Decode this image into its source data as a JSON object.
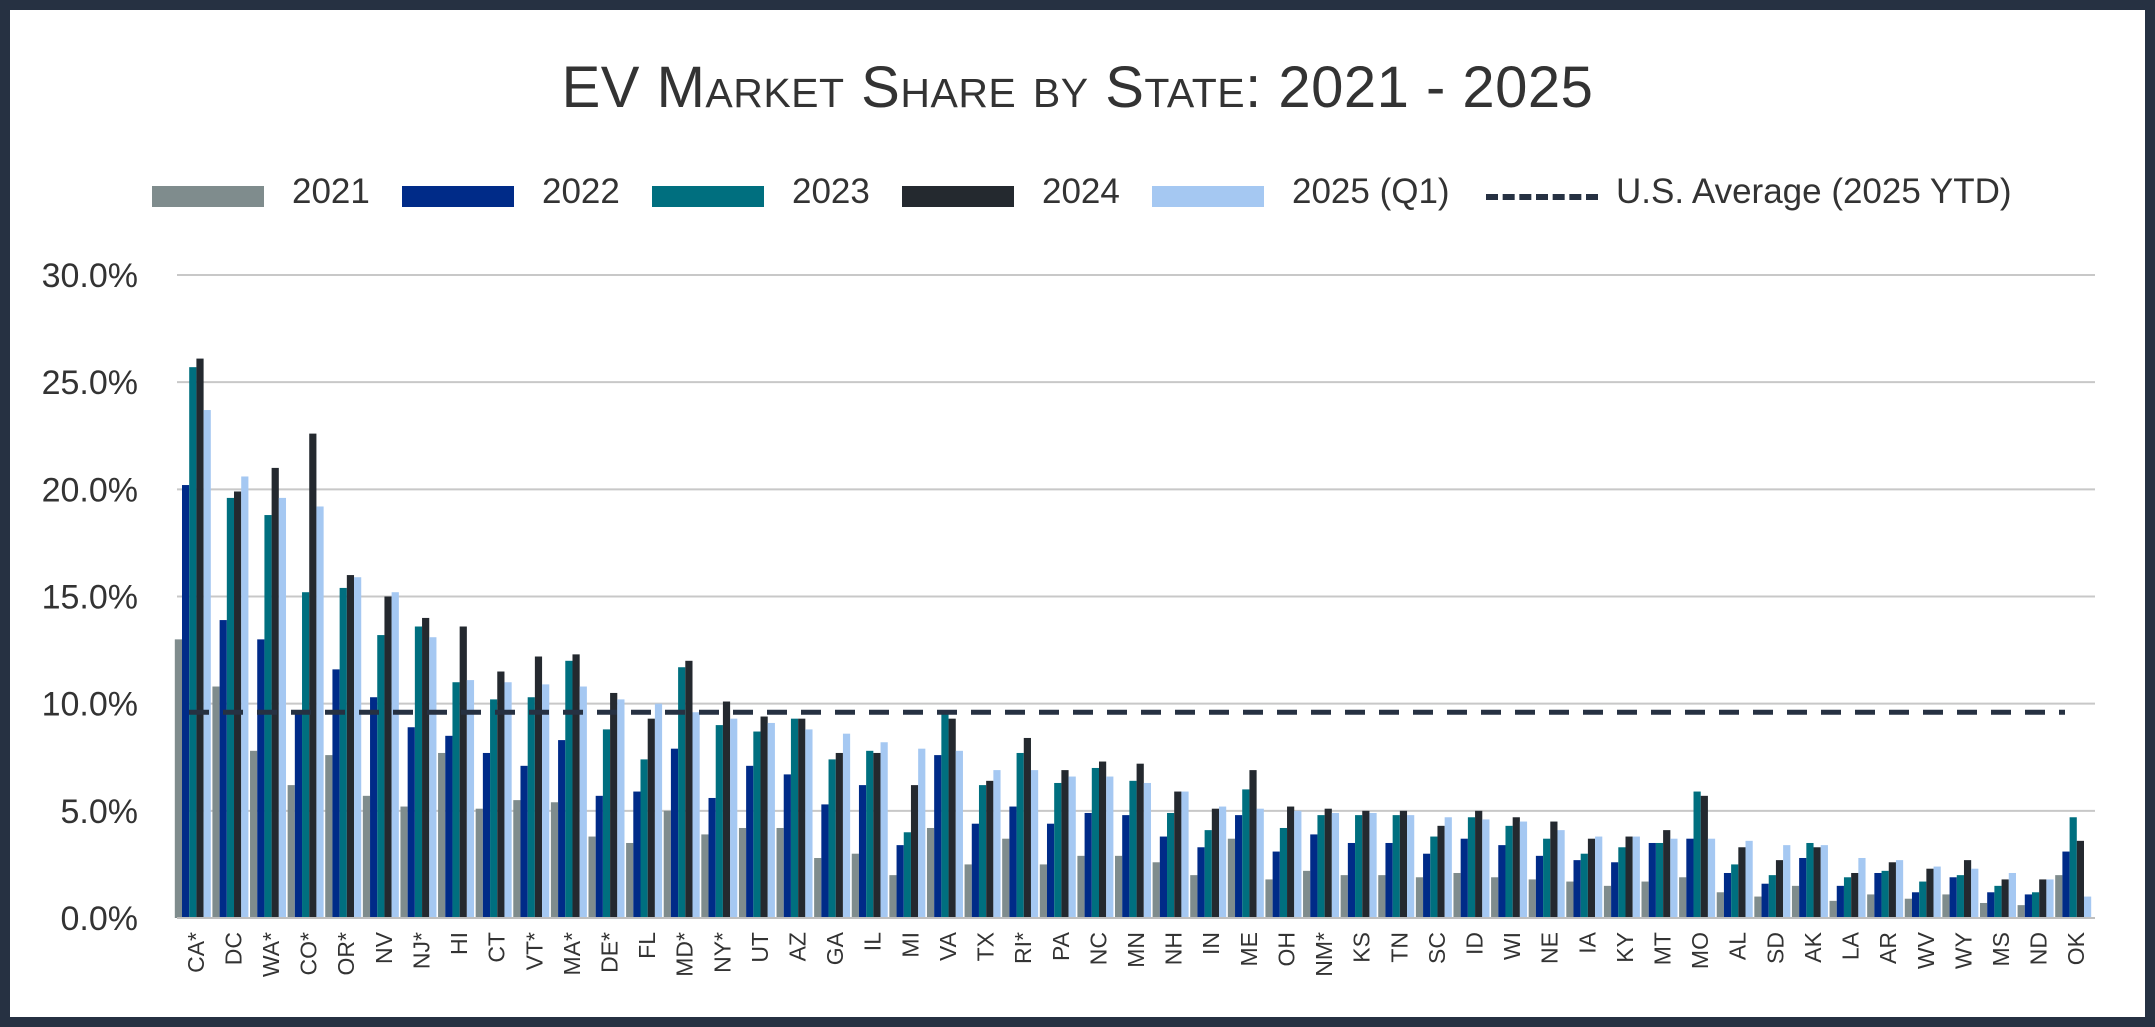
{
  "chart_data": {
    "type": "bar",
    "title": "EV Market Share by State: 2021 - 2025",
    "xlabel": "",
    "ylabel": "",
    "ylim": [
      0,
      30
    ],
    "yticks": [
      "0.0%",
      "5.0%",
      "10.0%",
      "15.0%",
      "20.0%",
      "25.0%",
      "30.0%"
    ],
    "ytick_values": [
      0,
      5,
      10,
      15,
      20,
      25,
      30
    ],
    "grid": true,
    "legend_position": "top",
    "categories": [
      "CA*",
      "DC",
      "WA*",
      "CO*",
      "OR*",
      "NV",
      "NJ*",
      "HI",
      "CT",
      "VT*",
      "MA*",
      "DE*",
      "FL",
      "MD*",
      "NY*",
      "UT",
      "AZ",
      "GA",
      "IL",
      "MI",
      "VA",
      "TX",
      "RI*",
      "PA",
      "NC",
      "MN",
      "NH",
      "IN",
      "ME",
      "OH",
      "NM*",
      "KS",
      "TN",
      "SC",
      "ID",
      "WI",
      "NE",
      "IA",
      "KY",
      "MT",
      "MO",
      "AL",
      "SD",
      "AK",
      "LA",
      "AR",
      "WV",
      "WY",
      "MS",
      "ND",
      "OK"
    ],
    "series": [
      {
        "name": "2021",
        "color": "#7f8c8d",
        "values": [
          13.0,
          10.8,
          7.8,
          6.2,
          7.6,
          5.7,
          5.2,
          7.7,
          5.1,
          5.5,
          5.4,
          3.8,
          3.5,
          5.0,
          3.9,
          4.2,
          4.2,
          2.8,
          3.0,
          2.0,
          4.2,
          2.5,
          3.7,
          2.5,
          2.9,
          2.9,
          2.6,
          2.0,
          3.7,
          1.8,
          2.2,
          2.0,
          2.0,
          1.9,
          2.1,
          1.9,
          1.8,
          1.7,
          1.5,
          1.7,
          1.9,
          1.2,
          1.0,
          1.5,
          0.8,
          1.1,
          0.9,
          1.1,
          0.7,
          0.6,
          2.0
        ]
      },
      {
        "name": "2022",
        "color": "#002b88",
        "values": [
          20.2,
          13.9,
          13.0,
          9.7,
          11.6,
          10.3,
          8.9,
          8.5,
          7.7,
          7.1,
          8.3,
          5.7,
          5.9,
          7.9,
          5.6,
          7.1,
          6.7,
          5.3,
          6.2,
          3.4,
          7.6,
          4.4,
          5.2,
          4.4,
          4.9,
          4.8,
          3.8,
          3.3,
          4.8,
          3.1,
          3.9,
          3.5,
          3.5,
          3.0,
          3.7,
          3.4,
          2.9,
          2.7,
          2.6,
          3.5,
          3.7,
          2.1,
          1.6,
          2.8,
          1.5,
          2.1,
          1.2,
          1.9,
          1.2,
          1.1,
          3.1
        ]
      },
      {
        "name": "2023",
        "color": "#006f7f",
        "values": [
          25.7,
          19.6,
          18.8,
          15.2,
          15.4,
          13.2,
          13.6,
          11.0,
          10.2,
          10.3,
          12.0,
          8.8,
          7.4,
          11.7,
          9.0,
          8.7,
          9.3,
          7.4,
          7.8,
          4.0,
          9.7,
          6.2,
          7.7,
          6.3,
          7.0,
          6.4,
          4.9,
          4.1,
          6.0,
          4.2,
          4.8,
          4.8,
          4.8,
          3.8,
          4.7,
          4.3,
          3.7,
          3.0,
          3.3,
          3.5,
          5.9,
          2.5,
          2.0,
          3.5,
          1.9,
          2.2,
          1.7,
          2.0,
          1.5,
          1.2,
          4.7
        ]
      },
      {
        "name": "2024",
        "color": "#24292f",
        "values": [
          26.1,
          19.9,
          21.0,
          22.6,
          16.0,
          15.0,
          14.0,
          13.6,
          11.5,
          12.2,
          12.3,
          10.5,
          9.3,
          12.0,
          10.1,
          9.4,
          9.3,
          7.7,
          7.7,
          6.2,
          9.3,
          6.4,
          8.4,
          6.9,
          7.3,
          7.2,
          5.9,
          5.1,
          6.9,
          5.2,
          5.1,
          5.0,
          5.0,
          4.3,
          5.0,
          4.7,
          4.5,
          3.7,
          3.8,
          4.1,
          5.7,
          3.3,
          2.7,
          3.3,
          2.1,
          2.6,
          2.3,
          2.7,
          1.8,
          1.8,
          3.6
        ]
      },
      {
        "name": "2025 (Q1)",
        "color": "#a5c8f2",
        "values": [
          23.7,
          20.6,
          19.6,
          19.2,
          15.9,
          15.2,
          13.1,
          11.1,
          11.0,
          10.9,
          10.8,
          10.2,
          10.0,
          9.6,
          9.3,
          9.1,
          8.8,
          8.6,
          8.2,
          7.9,
          7.8,
          6.9,
          6.9,
          6.6,
          6.6,
          6.3,
          5.9,
          5.2,
          5.1,
          5.0,
          4.9,
          4.9,
          4.8,
          4.7,
          4.6,
          4.5,
          4.1,
          3.8,
          3.8,
          3.7,
          3.7,
          3.6,
          3.4,
          3.4,
          2.8,
          2.7,
          2.4,
          2.3,
          2.1,
          1.8,
          1.0
        ]
      }
    ],
    "reference_line": {
      "name": "U.S. Average (2025 YTD)",
      "value": 9.6,
      "color": "#263142",
      "style": "dashed"
    }
  },
  "legend": {
    "items": [
      {
        "label": "2021",
        "color": "#7f8c8d"
      },
      {
        "label": "2022",
        "color": "#002b88"
      },
      {
        "label": "2023",
        "color": "#006f7f"
      },
      {
        "label": "2024",
        "color": "#24292f"
      },
      {
        "label": "2025 (Q1)",
        "color": "#a5c8f2"
      },
      {
        "label": "U.S. Average (2025 YTD)",
        "color": "#263142"
      }
    ]
  },
  "colors": {
    "frame": "#263142",
    "grid": "#c8c8c8",
    "axis": "#333333"
  }
}
